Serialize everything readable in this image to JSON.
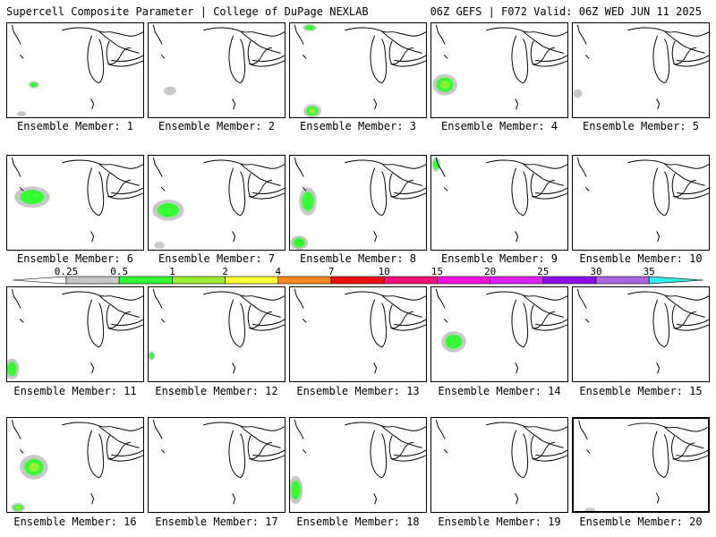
{
  "header": {
    "title_left": "Supercell Composite Parameter | College of DuPage NEXLAB",
    "title_right": "06Z GEFS | F072 Valid: 06Z WED JUN 11 2025"
  },
  "colors": {
    "0.25-0.5": "#c8c8c8",
    "0.5-1": "#33ff33",
    "1-2": "#99ee33",
    "2-4": "#ffff33",
    "4-7": "#ff8822",
    "7-10": "#ee1111",
    "10-15": "#ff1177",
    "15-20": "#ff11dd",
    "20-25": "#dd22ff",
    "25-30": "#8811ee",
    "30-35": "#aa66dd",
    "35+": "#33eeee"
  },
  "colorbar": {
    "ticks": [
      "0.25",
      "0.5",
      "1",
      "2",
      "4",
      "7",
      "10",
      "15",
      "20",
      "25",
      "30",
      "35"
    ]
  },
  "members": [
    {
      "label": "Ensemble Member: 1",
      "blobs": [
        {
          "cx": 30,
          "cy": 95,
          "rx": 6,
          "ry": 4,
          "levels": [
            "0.25-0.5",
            "0.5-1"
          ]
        },
        {
          "cx": 16,
          "cy": 128,
          "rx": 5,
          "ry": 3,
          "levels": [
            "0.25-0.5"
          ]
        }
      ]
    },
    {
      "label": "Ensemble Member: 2",
      "blobs": [
        {
          "cx": 24,
          "cy": 102,
          "rx": 7,
          "ry": 5,
          "levels": [
            "0.25-0.5"
          ]
        }
      ]
    },
    {
      "label": "Ensemble Member: 3",
      "blobs": [
        {
          "cx": 22,
          "cy": 30,
          "rx": 8,
          "ry": 4,
          "levels": [
            "0.25-0.5",
            "0.5-1"
          ]
        },
        {
          "cx": 25,
          "cy": 125,
          "rx": 10,
          "ry": 8,
          "levels": [
            "0.25-0.5",
            "0.5-1",
            "1-2"
          ]
        }
      ]
    },
    {
      "label": "Ensemble Member: 4",
      "blobs": [
        {
          "cx": 15,
          "cy": 95,
          "rx": 14,
          "ry": 12,
          "levels": [
            "0.25-0.5",
            "0.5-1",
            "1-2"
          ]
        }
      ]
    },
    {
      "label": "Ensemble Member: 5",
      "blobs": [
        {
          "cx": 5,
          "cy": 105,
          "rx": 5,
          "ry": 5,
          "levels": [
            "0.25-0.5"
          ]
        }
      ]
    },
    {
      "label": "Ensemble Member: 6",
      "blobs": [
        {
          "cx": 28,
          "cy": 220,
          "rx": 20,
          "ry": 12,
          "levels": [
            "0.25-0.5",
            "0.5-1"
          ]
        }
      ]
    },
    {
      "label": "Ensemble Member: 7",
      "blobs": [
        {
          "cx": 22,
          "cy": 235,
          "rx": 18,
          "ry": 12,
          "levels": [
            "0.25-0.5",
            "0.5-1"
          ]
        },
        {
          "cx": 12,
          "cy": 275,
          "rx": 6,
          "ry": 4,
          "levels": [
            "0.25-0.5"
          ]
        }
      ]
    },
    {
      "label": "Ensemble Member: 8",
      "blobs": [
        {
          "cx": 20,
          "cy": 225,
          "rx": 10,
          "ry": 16,
          "levels": [
            "0.25-0.5",
            "0.5-1"
          ]
        },
        {
          "cx": 10,
          "cy": 272,
          "rx": 10,
          "ry": 8,
          "levels": [
            "0.25-0.5",
            "0.5-1"
          ]
        }
      ]
    },
    {
      "label": "Ensemble Member: 9",
      "blobs": [
        {
          "cx": 5,
          "cy": 183,
          "rx": 5,
          "ry": 8,
          "levels": [
            "0.25-0.5",
            "0.5-1"
          ]
        }
      ]
    },
    {
      "label": "Ensemble Member: 10",
      "blobs": []
    },
    {
      "label": "Ensemble Member: 11",
      "blobs": [
        {
          "cx": 5,
          "cy": 413,
          "rx": 8,
          "ry": 12,
          "levels": [
            "0.25-0.5",
            "0.5-1"
          ]
        }
      ]
    },
    {
      "label": "Ensemble Member: 12",
      "blobs": [
        {
          "cx": 3,
          "cy": 398,
          "rx": 4,
          "ry": 5,
          "levels": [
            "0.25-0.5",
            "0.5-1"
          ]
        }
      ]
    },
    {
      "label": "Ensemble Member: 13",
      "blobs": []
    },
    {
      "label": "Ensemble Member: 14",
      "blobs": [
        {
          "cx": 25,
          "cy": 382,
          "rx": 14,
          "ry": 12,
          "levels": [
            "0.25-0.5",
            "0.5-1"
          ]
        }
      ]
    },
    {
      "label": "Ensemble Member: 15",
      "blobs": []
    },
    {
      "label": "Ensemble Member: 16",
      "blobs": [
        {
          "cx": 30,
          "cy": 522,
          "rx": 16,
          "ry": 14,
          "levels": [
            "0.25-0.5",
            "0.5-1",
            "1-2"
          ]
        },
        {
          "cx": 12,
          "cy": 568,
          "rx": 8,
          "ry": 5,
          "levels": [
            "0.25-0.5",
            "0.5-1",
            "1-2"
          ]
        }
      ]
    },
    {
      "label": "Ensemble Member: 17",
      "blobs": []
    },
    {
      "label": "Ensemble Member: 18",
      "blobs": [
        {
          "cx": 6,
          "cy": 548,
          "rx": 8,
          "ry": 16,
          "levels": [
            "0.25-0.5",
            "0.5-1"
          ]
        }
      ]
    },
    {
      "label": "Ensemble Member: 19",
      "blobs": []
    },
    {
      "label": "Ensemble Member: 20",
      "blobs": [
        {
          "cx": 18,
          "cy": 572,
          "rx": 6,
          "ry": 3,
          "levels": [
            "0.25-0.5"
          ]
        }
      ]
    }
  ]
}
